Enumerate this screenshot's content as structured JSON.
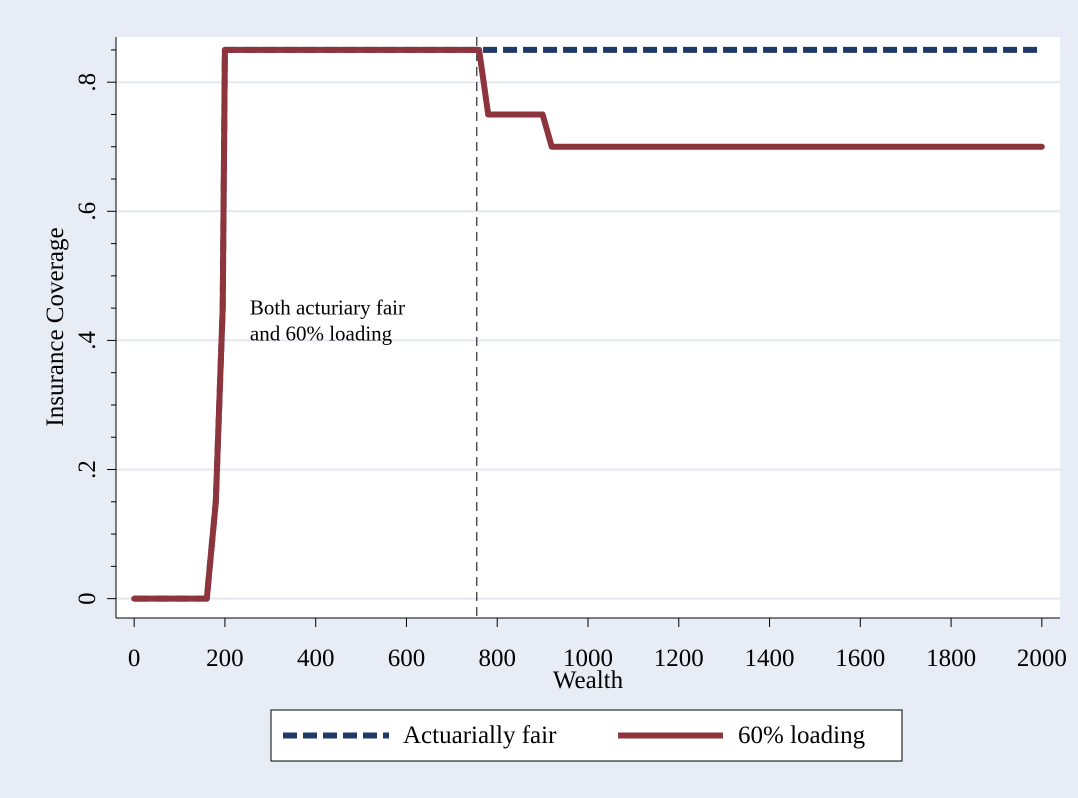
{
  "chart_data": {
    "type": "line",
    "title": "",
    "xlabel": "Wealth",
    "ylabel": "Insurance Coverage",
    "xlim": [
      -40,
      2040
    ],
    "ylim": [
      -0.03,
      0.87
    ],
    "x_ticks": [
      0,
      200,
      400,
      600,
      800,
      1000,
      1200,
      1400,
      1600,
      1800,
      2000
    ],
    "x_tick_labels": [
      "0",
      "200",
      "400",
      "600",
      "800",
      "1000",
      "1200",
      "1400",
      "1600",
      "1800",
      "2000"
    ],
    "y_ticks": [
      0,
      0.2,
      0.4,
      0.6,
      0.8
    ],
    "y_tick_labels": [
      "0",
      ".2",
      ".4",
      ".6",
      ".8"
    ],
    "y_minor_ticks": [
      0.05,
      0.1,
      0.15,
      0.25,
      0.3,
      0.35,
      0.45,
      0.5,
      0.55,
      0.65,
      0.7,
      0.75,
      0.85
    ],
    "grid": true,
    "legend_position": "bottom",
    "reference_line_x": 755,
    "annotation": {
      "lines": [
        "Both acturiary fair",
        "and 60% loading"
      ],
      "x": 255,
      "y": 0.44
    },
    "series": [
      {
        "name": "Actuarially fair",
        "color": "#1f3a68",
        "style": "dashed",
        "x": [
          0,
          160,
          180,
          195,
          200,
          2000
        ],
        "y": [
          0,
          0,
          0.15,
          0.45,
          0.85,
          0.85
        ]
      },
      {
        "name": "60% loading",
        "color": "#8e343d",
        "style": "solid",
        "x": [
          0,
          160,
          180,
          195,
          200,
          760,
          780,
          900,
          920,
          2000
        ],
        "y": [
          0,
          0,
          0.15,
          0.45,
          0.85,
          0.85,
          0.75,
          0.75,
          0.7,
          0.7
        ]
      }
    ]
  }
}
